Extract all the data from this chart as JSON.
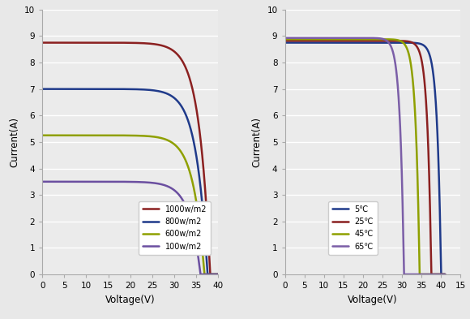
{
  "left": {
    "xlabel": "Voltage(V)",
    "ylabel": "Current(A)",
    "xlim": [
      0,
      40
    ],
    "ylim": [
      0,
      10
    ],
    "xticks": [
      0,
      5,
      10,
      15,
      20,
      25,
      30,
      35,
      40
    ],
    "yticks": [
      0,
      1,
      2,
      3,
      4,
      5,
      6,
      7,
      8,
      9,
      10
    ],
    "curves": [
      {
        "label": "1000w/m2",
        "isc": 8.75,
        "voc": 38.2,
        "color": "#8B2020",
        "knee": 2.5
      },
      {
        "label": "800w/m2",
        "isc": 7.0,
        "voc": 37.6,
        "color": "#1F3A8A",
        "knee": 2.5
      },
      {
        "label": "600w/m2",
        "isc": 5.25,
        "voc": 36.9,
        "color": "#8FA000",
        "knee": 2.5
      },
      {
        "label": "100w/m2",
        "isc": 3.5,
        "voc": 36.0,
        "color": "#6B4FA0",
        "knee": 2.5
      }
    ]
  },
  "right": {
    "xlabel": "Voltage(V)",
    "ylabel": "Current(A)",
    "xlim": [
      0,
      40
    ],
    "ylim": [
      0,
      10
    ],
    "xticks": [
      0,
      5,
      10,
      15,
      20,
      25,
      30,
      35,
      40
    ],
    "xticklabels": [
      "0",
      "5",
      "10",
      "15",
      "20",
      "25",
      "30",
      "35",
      "40"
    ],
    "extra_tick_label": "15",
    "yticks": [
      0,
      1,
      2,
      3,
      4,
      5,
      6,
      7,
      8,
      9,
      10
    ],
    "curves": [
      {
        "label": "5℃",
        "isc": 8.75,
        "voc": 40.0,
        "color": "#1F3A8A",
        "knee": 1.0
      },
      {
        "label": "25℃",
        "isc": 8.82,
        "voc": 37.5,
        "color": "#8B2020",
        "knee": 1.0
      },
      {
        "label": "45℃",
        "isc": 8.88,
        "voc": 34.5,
        "color": "#8FA000",
        "knee": 1.0
      },
      {
        "label": "65℃",
        "isc": 8.93,
        "voc": 30.5,
        "color": "#7B5EA7",
        "knee": 1.0
      }
    ]
  },
  "fig_bg": "#e8e8e8",
  "ax_bg": "#ebebeb",
  "grid_color": "#ffffff",
  "spine_color": "#aaaaaa",
  "tick_fontsize": 7.5,
  "label_fontsize": 8.5,
  "linewidth": 1.8
}
